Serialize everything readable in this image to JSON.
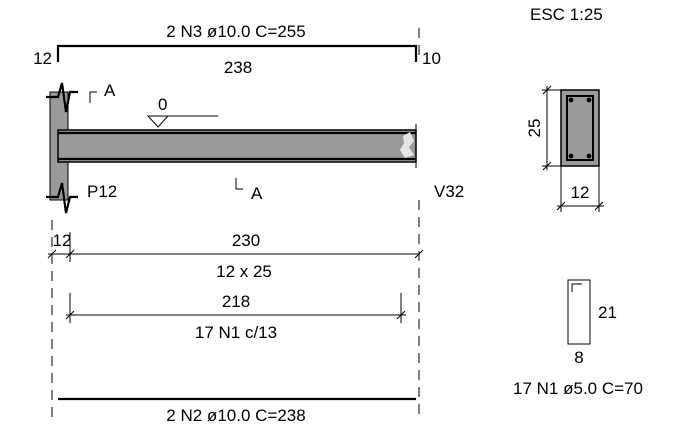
{
  "scale_label": "ESC 1:25",
  "top_bar": {
    "label": "2 N3 ø10.0  C=255",
    "hook_left": "12",
    "hook_right": "10",
    "length": "238"
  },
  "section_cut": {
    "top": "A",
    "bottom": "A"
  },
  "level_mark": "0",
  "support_left": "P12",
  "support_right": "V32",
  "dimensions": {
    "support_width": "12",
    "span": "230",
    "section_size": "12 x 25",
    "stirrup_zone": "218",
    "stirrup_spacing": "17 N1 c/13"
  },
  "bottom_bar": {
    "label": "2 N2 ø10.0  C=238"
  },
  "cross_section": {
    "height": "25",
    "width": "12"
  },
  "stirrup": {
    "height": "21",
    "width": "8",
    "label": "17 N1 ø5.0  C=70"
  }
}
